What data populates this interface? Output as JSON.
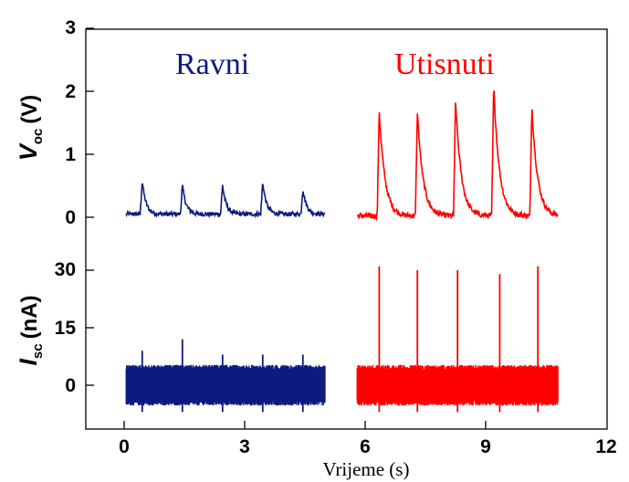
{
  "chart_data": {
    "type": "line",
    "xlabel": "Vrijeme (s)",
    "xlim": [
      -1,
      12
    ],
    "x_ticks": [
      "0",
      "3",
      "6",
      "9",
      "12"
    ],
    "series_labels": {
      "flat": "Ravni",
      "imprinted": "Utisnuti"
    },
    "colors": {
      "flat": "#0d1a80",
      "imprinted": "#ff0000"
    },
    "panels": [
      {
        "ylabel_main": "V",
        "ylabel_sub": "oc",
        "ylabel_unit": "(V)",
        "ylim": [
          -0.2,
          3
        ],
        "y_ticks": [
          "0",
          "1",
          "2",
          "3"
        ],
        "series": [
          {
            "name": "Ravni",
            "x_range": [
              0.05,
              5.0
            ],
            "baseline": 0.05,
            "peaks": [
              {
                "x": 0.45,
                "y": 0.58
              },
              {
                "x": 1.45,
                "y": 0.51
              },
              {
                "x": 2.45,
                "y": 0.51
              },
              {
                "x": 3.45,
                "y": 0.56
              },
              {
                "x": 4.45,
                "y": 0.45
              }
            ]
          },
          {
            "name": "Utisnuti",
            "x_range": [
              5.8,
              10.8
            ],
            "baseline": 0.02,
            "peaks": [
              {
                "x": 6.35,
                "y": 1.7
              },
              {
                "x": 7.3,
                "y": 1.68
              },
              {
                "x": 8.25,
                "y": 1.87
              },
              {
                "x": 9.2,
                "y": 2.1
              },
              {
                "x": 10.15,
                "y": 1.78
              }
            ]
          }
        ]
      },
      {
        "ylabel_main": "I",
        "ylabel_sub": "sc",
        "ylabel_unit": "(nA)",
        "ylim": [
          -12,
          35
        ],
        "y_ticks": [
          "0",
          "15",
          "30"
        ],
        "series": [
          {
            "name": "Ravni",
            "x_range": [
              0.05,
              5.0
            ],
            "noise_band": [
              -5,
              5
            ],
            "peaks": [
              {
                "x": 0.45,
                "y": 9
              },
              {
                "x": 1.45,
                "y": 12
              },
              {
                "x": 2.45,
                "y": 8
              },
              {
                "x": 3.45,
                "y": 8
              },
              {
                "x": 4.45,
                "y": 8
              }
            ]
          },
          {
            "name": "Utisnuti",
            "x_range": [
              5.8,
              10.8
            ],
            "noise_band": [
              -5,
              5
            ],
            "peaks": [
              {
                "x": 6.35,
                "y": 31
              },
              {
                "x": 7.3,
                "y": 30
              },
              {
                "x": 8.3,
                "y": 30
              },
              {
                "x": 9.35,
                "y": 29
              },
              {
                "x": 10.3,
                "y": 31
              }
            ]
          }
        ]
      }
    ]
  }
}
